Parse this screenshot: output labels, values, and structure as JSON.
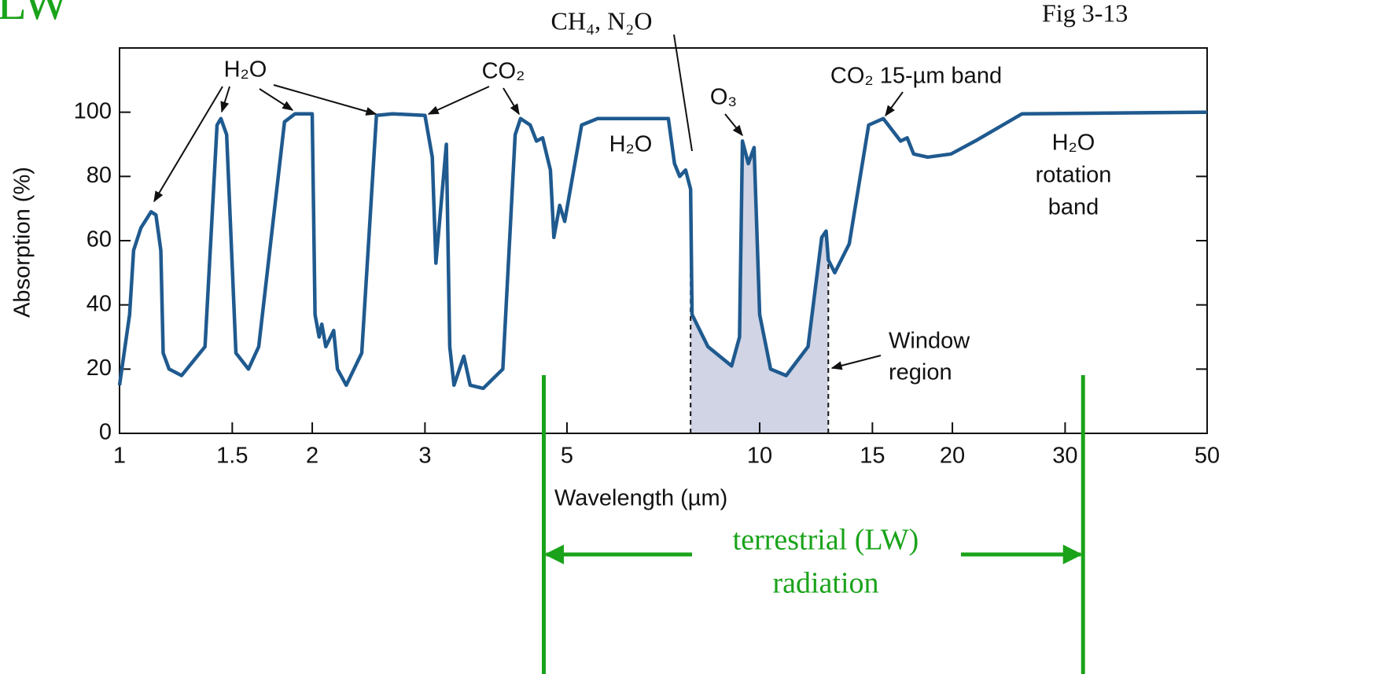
{
  "chart_data": {
    "type": "line",
    "corner_label": "LW",
    "figure_label": "Fig 3-13",
    "xlabel": "Wavelength (µm)",
    "ylabel": "Absorption (%)",
    "xscale": "log",
    "xlim": [
      1,
      50
    ],
    "ylim": [
      0,
      120
    ],
    "xticks": [
      1,
      1.5,
      2,
      3,
      5,
      10,
      15,
      20,
      30,
      50
    ],
    "yticks": [
      0,
      20,
      40,
      60,
      80,
      100
    ],
    "series": [
      {
        "color": "#1f5a8f",
        "x": [
          1,
          1.037,
          1.052,
          1.08,
          1.12,
          1.14,
          1.16,
          1.17,
          1.195,
          1.25,
          1.36,
          1.42,
          1.44,
          1.47,
          1.52,
          1.59,
          1.65,
          1.81,
          1.88,
          2.0,
          2.02,
          2.05,
          2.07,
          2.1,
          2.16,
          2.19,
          2.26,
          2.39,
          2.52,
          2.67,
          3.0,
          3.08,
          3.12,
          3.24,
          3.28,
          3.33,
          3.45,
          3.53,
          3.7,
          3.97,
          4.15,
          4.23,
          4.38,
          4.48,
          4.58,
          4.71,
          4.77,
          4.87,
          4.96,
          5.27,
          5.58,
          7.2,
          7.36,
          7.5,
          7.66,
          7.8,
          7.84,
          8.3,
          9.04,
          9.3,
          9.4,
          9.6,
          9.8,
          10.0,
          10.4,
          11.0,
          11.9,
          12.5,
          12.7,
          12.8,
          13.1,
          13.8,
          14.8,
          15.6,
          16.6,
          17.0,
          17.4,
          18.3,
          19.9,
          21.7,
          25.7,
          50
        ],
        "values": [
          15,
          37,
          57,
          64,
          69,
          68,
          57,
          25,
          20,
          18,
          27,
          96,
          98,
          93,
          25,
          20,
          27,
          97,
          99.5,
          99.5,
          37,
          30,
          34,
          27,
          32,
          20,
          15,
          25,
          99,
          99.5,
          99,
          86,
          53,
          90,
          27,
          15,
          24,
          15,
          14,
          20,
          93,
          98,
          96,
          91,
          92,
          82,
          61,
          71,
          66,
          96,
          98,
          98,
          84,
          80,
          82,
          76,
          37,
          27,
          21,
          30,
          91,
          84,
          89,
          37,
          20,
          18,
          27,
          61,
          63,
          54,
          50,
          59,
          96,
          98,
          91,
          92,
          87,
          86,
          87,
          91,
          99.5,
          100
        ]
      }
    ],
    "window_region": [
      7.8,
      12.8
    ],
    "lw_range": [
      4.6,
      32
    ],
    "annotations": {
      "h2o_left": "H₂O",
      "co2": "CO₂",
      "h2o_mid": "H₂O",
      "ch4_n2o": "CH₄, N₂O",
      "o3": "O₃",
      "co2_band": "CO₂ 15-µm band",
      "rotation": [
        "H₂O",
        "rotation",
        "band"
      ],
      "window": [
        "Window",
        "region"
      ],
      "terrestrial": [
        "terrestrial (LW)",
        "radiation"
      ]
    }
  }
}
